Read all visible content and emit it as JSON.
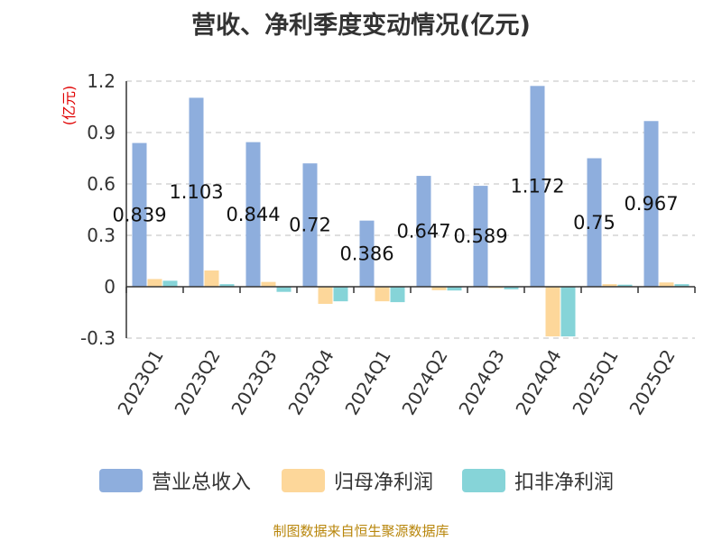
{
  "chart_data": {
    "type": "bar",
    "title": "营收、净利季度变动情况(亿元)",
    "ylabel": "(亿元)",
    "xlabel": "",
    "ylim": [
      -0.3,
      1.2
    ],
    "yticks": [
      "1.2",
      "0.9",
      "0.6",
      "0.3",
      "0",
      "-0.3"
    ],
    "ytick_values": [
      1.2,
      0.9,
      0.6,
      0.3,
      0,
      -0.3
    ],
    "grid": "horizontal dashed",
    "legend_position": "bottom",
    "categories": [
      "2023Q1",
      "2023Q2",
      "2023Q3",
      "2023Q4",
      "2024Q1",
      "2024Q2",
      "2024Q3",
      "2024Q4",
      "2025Q1",
      "2025Q2"
    ],
    "series": [
      {
        "name": "营业总收入",
        "color": "#8eaedd",
        "values": [
          0.839,
          1.103,
          0.844,
          0.72,
          0.386,
          0.647,
          0.589,
          1.172,
          0.75,
          0.967
        ],
        "labels": [
          "0.839",
          "1.103",
          "0.844",
          "0.72",
          "0.386",
          "0.647",
          "0.589",
          "1.172",
          "0.75",
          "0.967"
        ]
      },
      {
        "name": "归母净利润",
        "color": "#fdd79a",
        "values": [
          0.045,
          0.095,
          0.028,
          -0.1,
          -0.085,
          -0.02,
          -0.008,
          -0.29,
          0.015,
          0.025
        ]
      },
      {
        "name": "扣非净利润",
        "color": "#86d4d8",
        "values": [
          0.035,
          0.015,
          -0.03,
          -0.085,
          -0.09,
          -0.022,
          -0.015,
          -0.29,
          0.012,
          0.015
        ]
      }
    ]
  },
  "footer": {
    "source": "制图数据来自恒生聚源数据库"
  }
}
